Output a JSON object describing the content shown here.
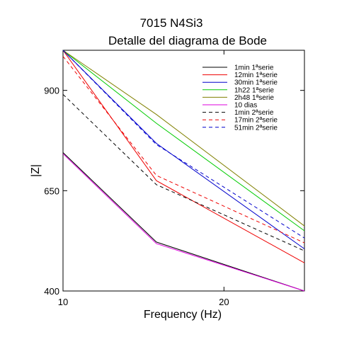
{
  "chart_data": {
    "type": "line",
    "title": "7015 N4Si3",
    "subtitle": "Detalle del diagrama de Bode",
    "xlabel": "Frequency (Hz)",
    "ylabel": "|Z|",
    "xlim": [
      10,
      25
    ],
    "ylim": [
      400,
      1000
    ],
    "x_ticks": [
      {
        "value": 10,
        "label": "10"
      },
      {
        "value": 20,
        "label": "20"
      }
    ],
    "y_ticks": [
      {
        "value": 400,
        "label": "400"
      },
      {
        "value": 650,
        "label": "650"
      },
      {
        "value": 900,
        "label": "900"
      }
    ],
    "grid": false,
    "legend_position": "top-right",
    "x": [
      10,
      15.8,
      25
    ],
    "series": [
      {
        "name": "1min 1ªserie",
        "color": "#000000",
        "dash": "solid",
        "values": [
          745,
          522,
          400
        ]
      },
      {
        "name": "12min 1ªserie",
        "color": "#ee0000",
        "dash": "solid",
        "values": [
          1000,
          675,
          470
        ]
      },
      {
        "name": "30min 1ªserie",
        "color": "#0000cc",
        "dash": "solid",
        "values": [
          1000,
          768,
          505
        ]
      },
      {
        "name": "1h22 1ªserie",
        "color": "#00cc00",
        "dash": "solid",
        "values": [
          1000,
          818,
          550
        ]
      },
      {
        "name": "2h48 1ªserie",
        "color": "#808000",
        "dash": "solid",
        "values": [
          1000,
          840,
          562
        ]
      },
      {
        "name": "10 dias",
        "color": "#dd00dd",
        "dash": "solid",
        "values": [
          742,
          518,
          400
        ]
      },
      {
        "name": "1min 2ªserie",
        "color": "#000000",
        "dash": "dashed",
        "values": [
          890,
          665,
          500
        ]
      },
      {
        "name": "17min 2ªserie",
        "color": "#ee0000",
        "dash": "dashed",
        "values": [
          985,
          688,
          520
        ]
      },
      {
        "name": "51min 2ªserie",
        "color": "#0000cc",
        "dash": "dashed",
        "values": [
          1000,
          765,
          532
        ]
      }
    ]
  }
}
